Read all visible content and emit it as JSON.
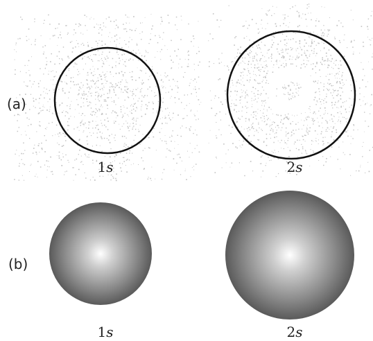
{
  "rows": [
    {
      "label": "(a)",
      "items": [
        {
          "number": "1",
          "letter": "s"
        },
        {
          "number": "2",
          "letter": "s"
        }
      ]
    },
    {
      "label": "(b)",
      "items": [
        {
          "number": "1",
          "letter": "s"
        },
        {
          "number": "2",
          "letter": "s"
        }
      ]
    }
  ]
}
